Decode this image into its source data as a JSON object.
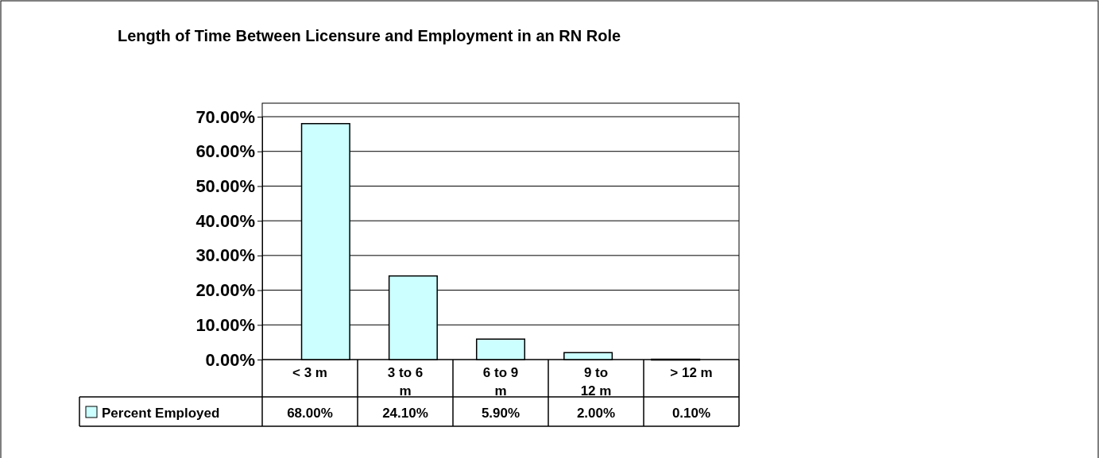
{
  "chart_data": {
    "type": "bar",
    "title": "Length of Time Between Licensure and Employment in an RN Role",
    "categories": [
      "< 3 m",
      "3 to 6 m",
      "6 to 9 m",
      "9 to 12 m",
      "> 12 m"
    ],
    "series": [
      {
        "name": "Percent Employed",
        "color": "#ccffff",
        "values": [
          68,
          24.1,
          5.9,
          2,
          0.1
        ],
        "value_labels": [
          "68.00%",
          "24.10%",
          "5.90%",
          "2.00%",
          "0.10%"
        ]
      }
    ],
    "ylim": [
      0,
      70
    ],
    "yticks": [
      {
        "value": 0,
        "label": "0.00%"
      },
      {
        "value": 10,
        "label": "10.00%"
      },
      {
        "value": 20,
        "label": "20.00%"
      },
      {
        "value": 30,
        "label": "30.00%"
      },
      {
        "value": 40,
        "label": "40.00%"
      },
      {
        "value": 50,
        "label": "50.00%"
      },
      {
        "value": 60,
        "label": "60.00%"
      },
      {
        "value": 70,
        "label": "70.00%"
      }
    ],
    "grid": "y",
    "legend": "bottom"
  }
}
